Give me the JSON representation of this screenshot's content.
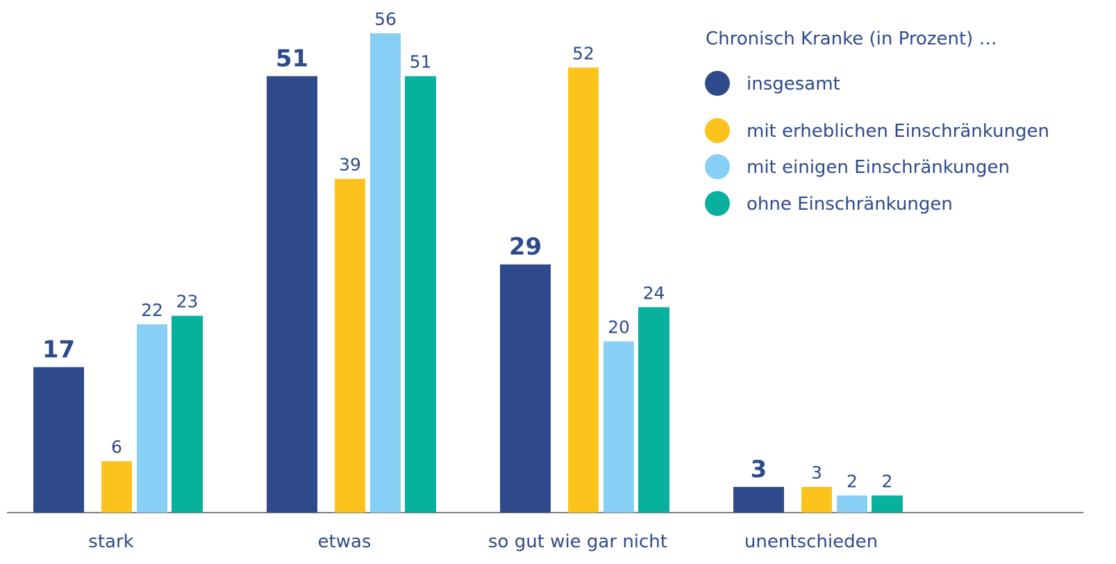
{
  "chart_data": {
    "type": "bar",
    "legend_title": "Chronisch Kranke (in Prozent) …",
    "categories": [
      "stark",
      "etwas",
      "so gut wie gar nicht",
      "unentschieden"
    ],
    "series": [
      {
        "name": "insgesamt",
        "color": "#2e4a8b",
        "values": [
          17,
          51,
          29,
          3
        ]
      },
      {
        "name": "mit erheblichen Einschränkungen",
        "color": "#fbc31c",
        "values": [
          6,
          39,
          52,
          3
        ]
      },
      {
        "name": "mit einigen Einschränkungen",
        "color": "#87cff4",
        "values": [
          22,
          56,
          20,
          2
        ]
      },
      {
        "name": "ohne Einschränkungen",
        "color": "#08b09e",
        "values": [
          23,
          51,
          24,
          2
        ]
      }
    ],
    "ylim": [
      0,
      56
    ],
    "legend": "upper right"
  }
}
